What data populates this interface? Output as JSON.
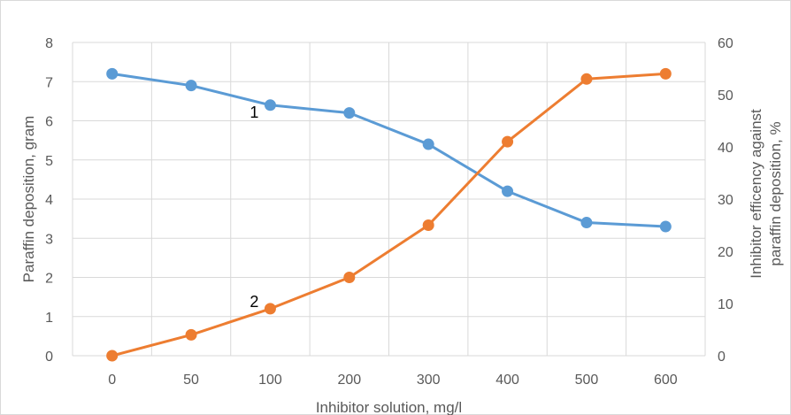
{
  "chart_data": {
    "type": "line",
    "categories": [
      "0",
      "50",
      "100",
      "200",
      "300",
      "400",
      "500",
      "600"
    ],
    "xlabel": "Inhibitor solution, mg/l",
    "ylabel": "Paraffin deposition, gram",
    "y2label_line1": "Inhibitor efficency against",
    "y2label_line2": "paraffin deposition, %",
    "ylim": [
      0,
      8
    ],
    "y2lim": [
      0,
      60
    ],
    "y_ticks": [
      "0",
      "1",
      "2",
      "3",
      "4",
      "5",
      "6",
      "7",
      "8"
    ],
    "y2_ticks": [
      "0",
      "10",
      "20",
      "30",
      "40",
      "50",
      "60"
    ],
    "grid": true,
    "series": [
      {
        "label": "1",
        "axis": "left",
        "color": "#5B9BD5",
        "values": [
          7.2,
          6.9,
          6.4,
          6.2,
          5.4,
          4.2,
          3.4,
          3.3
        ]
      },
      {
        "label": "2",
        "axis": "right",
        "color": "#ED7D31",
        "values": [
          0,
          4,
          9,
          15,
          25,
          41,
          53,
          54
        ]
      }
    ]
  }
}
